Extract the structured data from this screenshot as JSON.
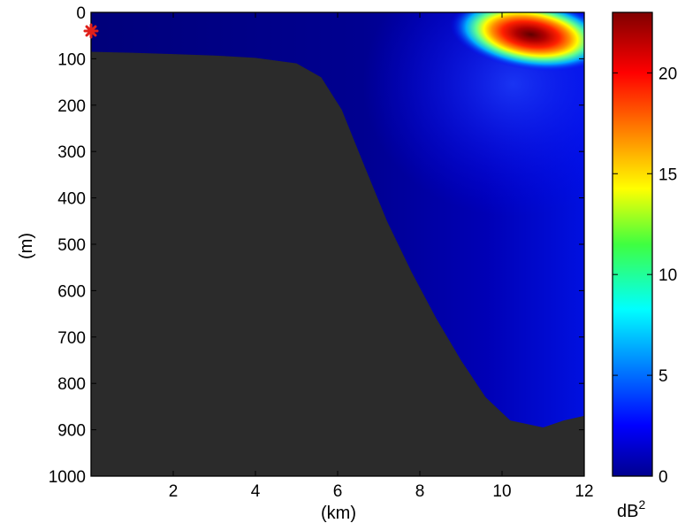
{
  "chart_data": {
    "type": "heatmap",
    "title": "",
    "xlabel": "(km)",
    "ylabel": "(m)",
    "xlim": [
      0,
      12
    ],
    "ylim": [
      1000,
      0
    ],
    "x_ticks": [
      "2",
      "4",
      "6",
      "8",
      "10",
      "12"
    ],
    "y_ticks": [
      "0",
      "100",
      "200",
      "300",
      "400",
      "500",
      "600",
      "700",
      "800",
      "900",
      "1000"
    ],
    "colorbar": {
      "label": "dB",
      "label_superscript": "2",
      "range": [
        0,
        23
      ],
      "ticks": [
        "0",
        "5",
        "10",
        "15",
        "20"
      ],
      "colormap": "jet"
    },
    "source_marker": {
      "x_km": 0,
      "depth_m": 40,
      "symbol": "*",
      "color": "#e0201a"
    },
    "bathymetry": {
      "description_fill": "#2b2b2b",
      "points": [
        [
          0,
          85
        ],
        [
          1,
          87
        ],
        [
          2,
          90
        ],
        [
          3,
          93
        ],
        [
          4,
          98
        ],
        [
          5,
          110
        ],
        [
          5.6,
          140
        ],
        [
          6.1,
          210
        ],
        [
          6.6,
          320
        ],
        [
          7.2,
          450
        ],
        [
          7.8,
          560
        ],
        [
          8.4,
          660
        ],
        [
          9.0,
          750
        ],
        [
          9.6,
          830
        ],
        [
          10.2,
          880
        ],
        [
          11.0,
          895
        ],
        [
          11.5,
          880
        ],
        [
          12,
          870
        ]
      ]
    },
    "hotspot": {
      "x_km": 10.7,
      "depth_m": 40,
      "peak_db2": 23
    }
  }
}
